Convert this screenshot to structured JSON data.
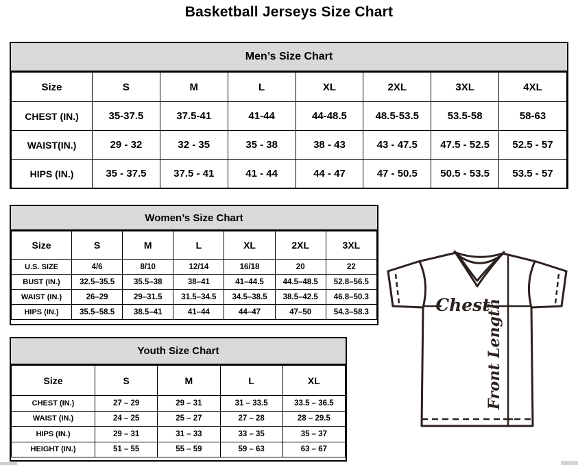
{
  "page_title": "Basketball Jerseys Size Chart",
  "tables": {
    "men": {
      "title": "Men’s Size Chart",
      "header": [
        "Size",
        "S",
        "M",
        "L",
        "XL",
        "2XL",
        "3XL",
        "4XL"
      ],
      "rows": [
        [
          "CHEST (IN.)",
          "35-37.5",
          "37.5-41",
          "41-44",
          "44-48.5",
          "48.5-53.5",
          "53.5-58",
          "58-63"
        ],
        [
          "WAIST(IN.)",
          "29 - 32",
          "32 - 35",
          "35 - 38",
          "38 - 43",
          "43 - 47.5",
          "47.5 - 52.5",
          "52.5 - 57"
        ],
        [
          "HIPS (IN.)",
          "35 - 37.5",
          "37.5 - 41",
          "41 - 44",
          "44 - 47",
          "47 - 50.5",
          "50.5 - 53.5",
          "53.5 - 57"
        ]
      ]
    },
    "women": {
      "title": "Women’s Size Chart",
      "header": [
        "Size",
        "S",
        "M",
        "L",
        "XL",
        "2XL",
        "3XL"
      ],
      "rows": [
        [
          "U.S. SIZE",
          "4/6",
          "8/10",
          "12/14",
          "16/18",
          "20",
          "22"
        ],
        [
          "BUST (IN.)",
          "32.5–35.5",
          "35.5–38",
          "38–41",
          "41–44.5",
          "44.5–48.5",
          "52.8–56.5"
        ],
        [
          "WAIST (IN.)",
          "26–29",
          "29–31.5",
          "31.5–34.5",
          "34.5–38.5",
          "38.5–42.5",
          "46.8–50.3"
        ],
        [
          "HIPS (IN.)",
          "35.5–58.5",
          "38.5–41",
          "41–44",
          "44–47",
          "47–50",
          "54.3–58.3"
        ]
      ]
    },
    "youth": {
      "title": "Youth Size Chart",
      "header": [
        "Size",
        "S",
        "M",
        "L",
        "XL"
      ],
      "rows": [
        [
          "CHEST (IN.)",
          "27 – 29",
          "29 – 31",
          "31 – 33.5",
          "33.5 – 36.5"
        ],
        [
          "WAIST (IN.)",
          "24 – 25",
          "25 – 27",
          "27 – 28",
          "28 – 29.5"
        ],
        [
          "HIPS (IN.)",
          "29 – 31",
          "31 – 33",
          "33 – 35",
          "35 – 37"
        ],
        [
          "HEIGHT (IN.)",
          "51 – 55",
          "55 – 59",
          "59 – 63",
          "63 – 67"
        ]
      ]
    }
  },
  "diagram": {
    "chest_label": "Chest",
    "front_length_label": "Front Length"
  },
  "colors": {
    "table_header_bg": "#d9d9d9",
    "table_border": "#000000",
    "diagram_stroke": "#2b211f"
  }
}
